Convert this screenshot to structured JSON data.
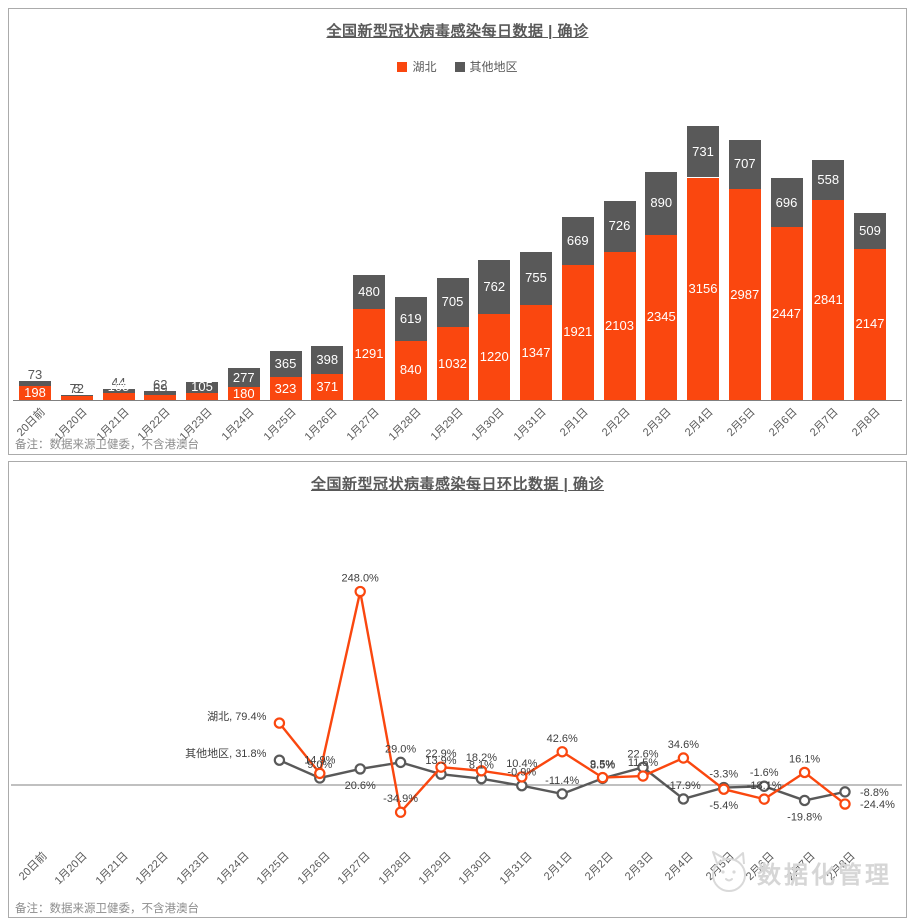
{
  "panels": {
    "daily": {
      "title": "全国新型冠状病毒感染每日数据 | 确诊",
      "note": "备注：数据来源卫健委，不含港澳台",
      "legend": [
        {
          "label": "湖北",
          "color": "#fa470f"
        },
        {
          "label": "其他地区",
          "color": "#595959"
        }
      ]
    },
    "ratio": {
      "title": "全国新型冠状病毒感染每日环比数据 | 确诊",
      "note": "备注：数据来源卫健委，不含港澳台",
      "watermark": "数据化管理"
    }
  },
  "colors": {
    "hubei": "#fa470f",
    "others": "#595959",
    "title_text": "#595959",
    "axis_text": "#595959",
    "data_label_text": "#3f3f3f",
    "axis_line": "#808080",
    "panel_border": "#ababab",
    "watermark": "#d6d6d6"
  },
  "chart_data": [
    {
      "type": "bar",
      "stacked": true,
      "title": "全国新型冠状病毒感染每日数据 | 确诊",
      "xlabel": "",
      "ylabel": "",
      "ylim": [
        0,
        4000
      ],
      "grid": false,
      "legend_position": "top",
      "categories": [
        "20日前",
        "1月20日",
        "1月21日",
        "1月22日",
        "1月23日",
        "1月24日",
        "1月25日",
        "1月26日",
        "1月27日",
        "1月28日",
        "1月29日",
        "1月30日",
        "1月31日",
        "2月1日",
        "2月2日",
        "2月3日",
        "2月4日",
        "2月5日",
        "2月6日",
        "2月7日",
        "2月8日"
      ],
      "series": [
        {
          "name": "湖北",
          "color": "#fa470f",
          "values": [
            198,
            72,
            105,
            69,
            105,
            180,
            323,
            371,
            1291,
            840,
            1032,
            1220,
            1347,
            1921,
            2103,
            2345,
            3156,
            2987,
            2447,
            2841,
            2147
          ]
        },
        {
          "name": "其他地区",
          "color": "#595959",
          "values": [
            73,
            5,
            44,
            62,
            154,
            277,
            365,
            398,
            480,
            619,
            705,
            762,
            755,
            669,
            726,
            890,
            731,
            707,
            696,
            558,
            509
          ]
        }
      ]
    },
    {
      "type": "line",
      "title": "全国新型冠状病毒感染每日环比数据 | 确诊",
      "xlabel": "",
      "ylabel": "",
      "ylim": [
        -50,
        260
      ],
      "grid": false,
      "categories": [
        "20日前",
        "1月20日",
        "1月21日",
        "1月22日",
        "1月23日",
        "1月24日",
        "1月25日",
        "1月26日",
        "1月27日",
        "1月28日",
        "1月29日",
        "1月30日",
        "1月31日",
        "2月1日",
        "2月2日",
        "2月3日",
        "2月4日",
        "2月5日",
        "2月6日",
        "2月7日",
        "2月8日"
      ],
      "series": [
        {
          "name": "湖北",
          "color": "#fa470f",
          "start_index": 6,
          "values_pct": [
            79.4,
            14.9,
            248.0,
            -34.9,
            22.9,
            18.2,
            10.4,
            42.6,
            9.5,
            11.5,
            34.6,
            -5.4,
            -18.1,
            16.1,
            -24.4
          ],
          "labels": [
            "湖北, 79.4%",
            "14.9%",
            "248.0%",
            "-34.9%",
            "22.9%",
            "18.2%",
            "10.4%",
            "42.6%",
            "9.5%",
            "11.5%",
            "34.6%",
            "-5.4%",
            "-18.1%",
            "16.1%",
            "-24.4%"
          ],
          "label_pos": [
            "name-left",
            "above",
            "above",
            "above",
            "above",
            "above",
            "above",
            "above",
            "above",
            "above",
            "above",
            "below",
            "above",
            "above",
            "right"
          ]
        },
        {
          "name": "其他地区",
          "color": "#595959",
          "start_index": 6,
          "values_pct": [
            31.8,
            9.0,
            20.6,
            29.0,
            13.9,
            8.1,
            -0.9,
            -11.4,
            8.5,
            22.6,
            -17.9,
            -3.3,
            -1.6,
            -19.8,
            -8.8
          ],
          "labels": [
            "其他地区, 31.8%",
            "9.0%",
            "20.6%",
            "29.0%",
            "13.9%",
            "8.1%",
            "-0.9%",
            "-11.4%",
            "8.5%",
            "22.6%",
            "-17.9%",
            "-3.3%",
            "-1.6%",
            "-19.8%",
            "-8.8%"
          ],
          "label_pos": [
            "name-left",
            "above",
            "below",
            "above",
            "above",
            "above",
            "above",
            "above",
            "above",
            "above",
            "above",
            "above",
            "above",
            "below",
            "right"
          ]
        }
      ]
    }
  ]
}
